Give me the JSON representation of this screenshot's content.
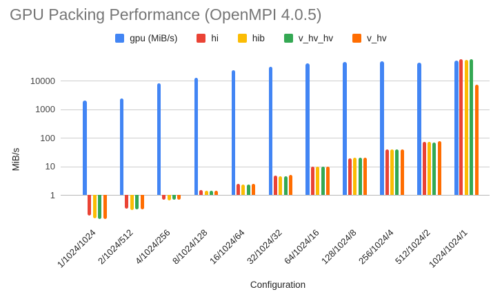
{
  "chart_data": {
    "type": "bar",
    "title": "GPU Packing Performance (OpenMPI 4.0.5)",
    "xlabel": "Configuration",
    "ylabel": "MiB/s",
    "y_scale": "log",
    "yticks": [
      1,
      10,
      100,
      1000,
      10000
    ],
    "grid": true,
    "legend_position": "top",
    "categories": [
      "1/1024/1024",
      "2/1024/512",
      "4/1024/256",
      "8/1024/128",
      "16/1024/64",
      "32/1024/32",
      "64/1024/16",
      "128/1024/8",
      "256/1024/4",
      "512/1024/2",
      "1024/1024/1"
    ],
    "series": [
      {
        "name": "gpu (MiB/s)",
        "color": "#4285F4",
        "values": [
          1960,
          2400,
          8100,
          12300,
          22500,
          31000,
          40000,
          44000,
          46000,
          41500,
          49000
        ]
      },
      {
        "name": "hi",
        "color": "#EA4335",
        "values": [
          0.19,
          0.33,
          0.68,
          1.45,
          2.4,
          4.8,
          10,
          19,
          38,
          72,
          55000
        ]
      },
      {
        "name": "hib",
        "color": "#FBBC04",
        "values": [
          0.15,
          0.3,
          0.65,
          1.4,
          2.3,
          4.4,
          10,
          20,
          38,
          72,
          51500
        ]
      },
      {
        "name": "v_hv_hv",
        "color": "#34A853",
        "values": [
          0.145,
          0.31,
          0.66,
          1.4,
          2.3,
          4.4,
          10,
          20,
          40,
          69,
          56000
        ]
      },
      {
        "name": "v_hv",
        "color": "#FF6D01",
        "values": [
          0.14,
          0.31,
          0.66,
          1.4,
          2.4,
          5.1,
          10,
          20,
          40,
          77,
          7200
        ]
      }
    ]
  }
}
